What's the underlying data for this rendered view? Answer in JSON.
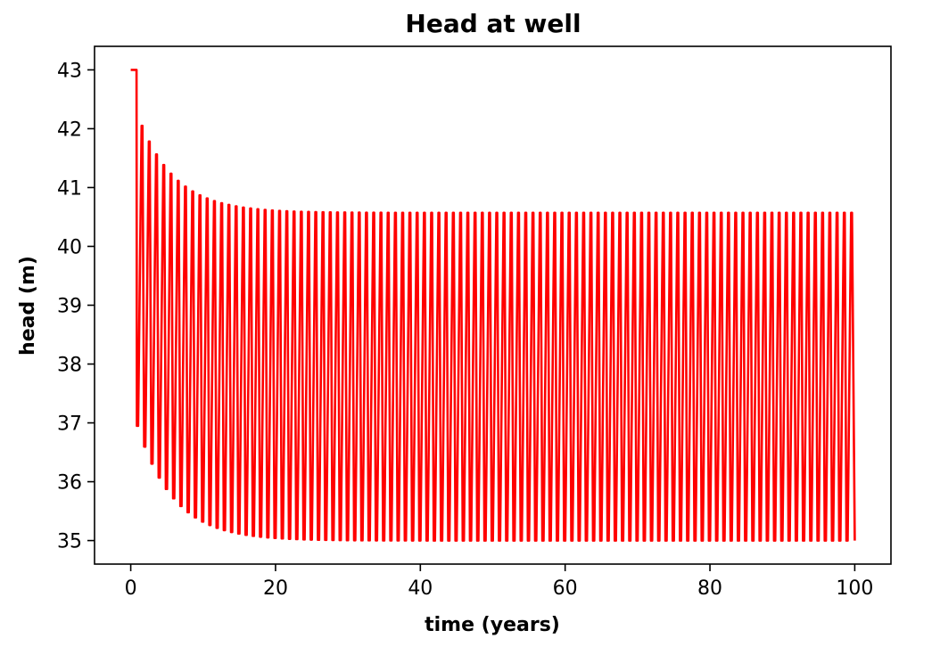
{
  "chart_data": {
    "type": "line",
    "title": "Head at well",
    "xlabel": "time (years)",
    "ylabel": "head (m)",
    "xlim": [
      -5,
      105
    ],
    "ylim": [
      34.6,
      43.4
    ],
    "xticks": [
      0,
      20,
      40,
      60,
      80,
      100
    ],
    "yticks": [
      35,
      36,
      37,
      38,
      39,
      40,
      41,
      42,
      43
    ],
    "xtick_labels": [
      "0",
      "20",
      "40",
      "60",
      "80",
      "100"
    ],
    "ytick_labels": [
      "35",
      "36",
      "37",
      "38",
      "39",
      "40",
      "41",
      "42",
      "43"
    ],
    "grid": false,
    "legend": false,
    "series": [
      {
        "color": "#ff0000",
        "initial": {
          "x": [
            0,
            0.8
          ],
          "y": [
            43.0,
            43.0
          ]
        },
        "oscillation": {
          "period_years": 1,
          "cycles": 99,
          "start_year": 1,
          "end_year": 100,
          "first_cycle_max": 42.05,
          "first_cycle_min": 36.95,
          "steady_max": 40.57,
          "steady_min": 35.0
        }
      }
    ]
  }
}
